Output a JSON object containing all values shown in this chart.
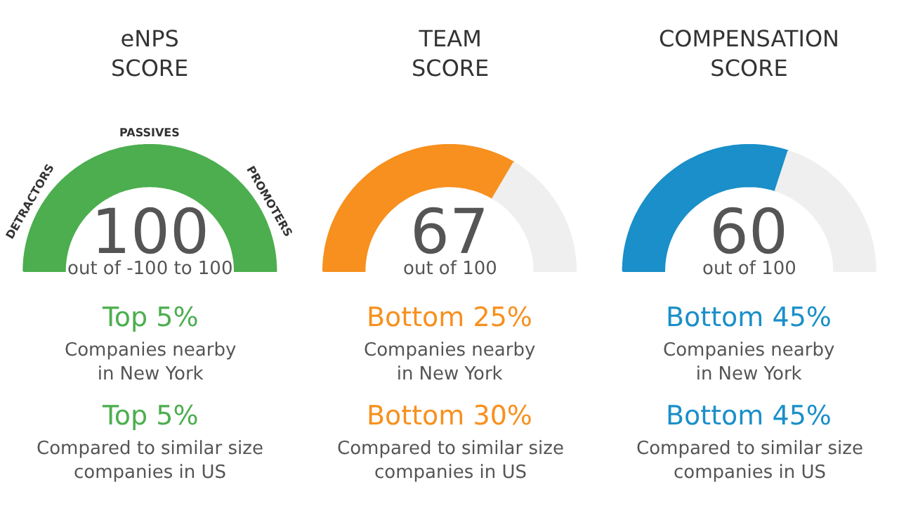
{
  "chart_data": [
    {
      "type": "donut",
      "title": "eNPS\nSCORE",
      "categories": [
        "DETRACTORS",
        "PASSIVES",
        "PROMOTERS"
      ],
      "values": [
        33.3,
        33.3,
        33.4
      ],
      "colors": [
        "#4cae4f",
        "#4cae4f",
        "#4cae4f"
      ],
      "annotations": [
        "100",
        "out of -100 to 100",
        "Top 5%",
        "Companies nearby\nin New York",
        "Top 5%",
        "Compared to similar size\ncompanies in US"
      ]
    },
    {
      "type": "donut",
      "title": "TEAM\nSCORE",
      "categories": [
        null,
        null
      ],
      "values": [
        67,
        33
      ],
      "colors": [
        "#f7901e",
        "#efefef"
      ],
      "annotations": [
        "67",
        "out of 100",
        "Bottom 25%",
        "Companies nearby\nin New York",
        "Bottom 30%",
        "Compared to similar size\ncompanies in US"
      ]
    },
    {
      "type": "donut",
      "title": "COMPENSATION\nSCORE",
      "categories": [
        null,
        null
      ],
      "values": [
        60,
        40
      ],
      "colors": [
        "#1a8fc9",
        "#efefef"
      ],
      "annotations": [
        "60",
        "out of 100",
        "Bottom 45%",
        "Companies nearby\nin New York",
        "Bottom 45%",
        "Compared to similar size\ncompanies in US"
      ]
    }
  ]
}
